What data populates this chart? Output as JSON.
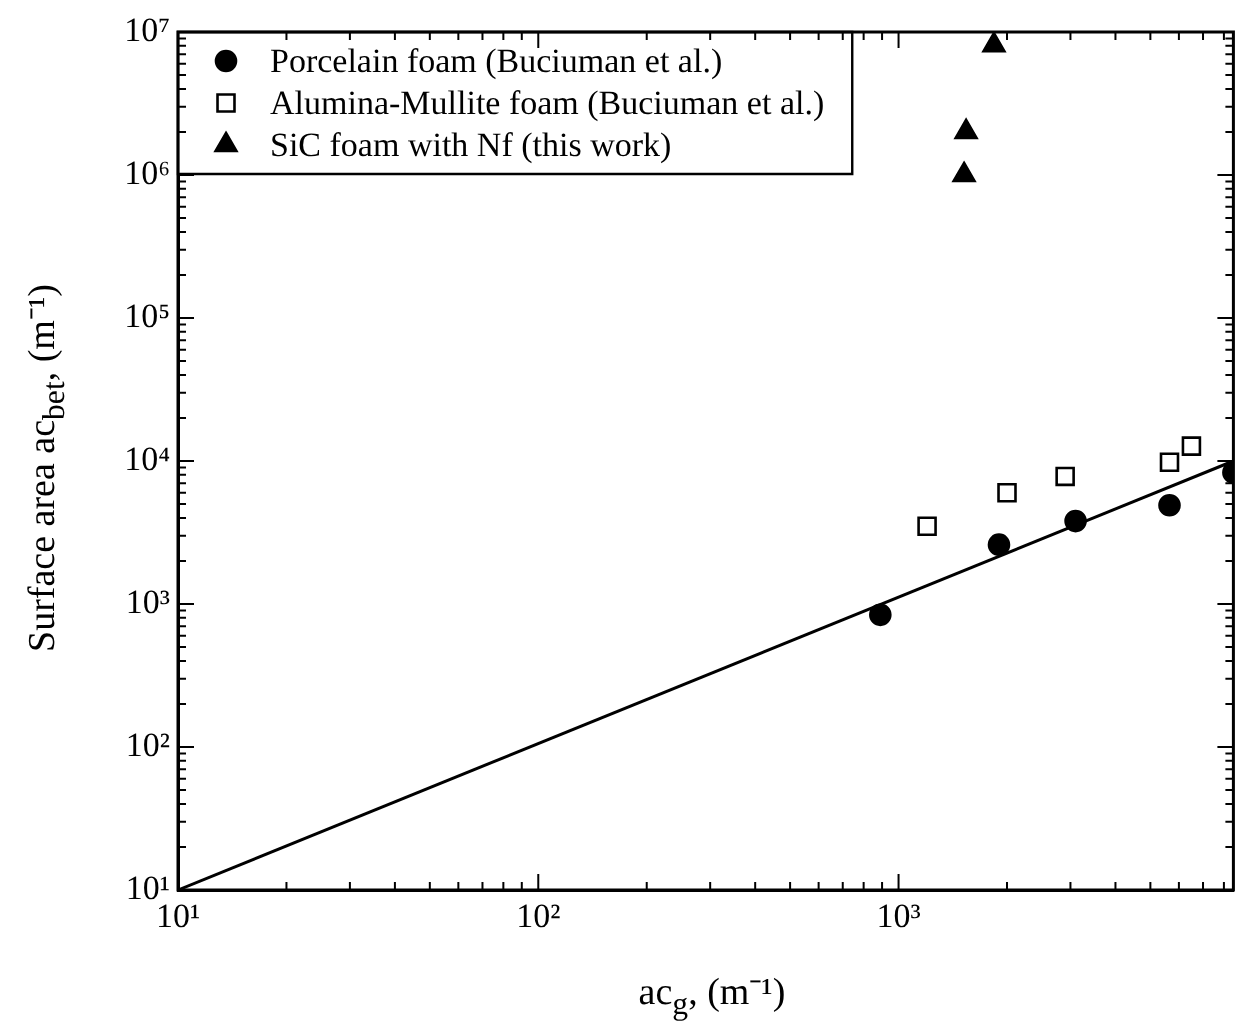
{
  "chart_data": {
    "type": "scatter",
    "xlabel": "ac$_{g}$, (m⁻¹)",
    "ylabel": "Surface area ac$_{bet}$, (m⁻¹)",
    "log": "xy",
    "xlim": [
      10,
      8500
    ],
    "ylim": [
      10,
      10000000
    ],
    "xticks": [
      {
        "value": 10,
        "label": "10¹"
      },
      {
        "value": 100,
        "label": "10²"
      },
      {
        "value": 1000,
        "label": "10³"
      }
    ],
    "yticks": [
      {
        "value": 10,
        "label": "10¹"
      },
      {
        "value": 100,
        "label": "10²"
      },
      {
        "value": 1000,
        "label": "10³"
      },
      {
        "value": 10000,
        "label": "10⁴"
      },
      {
        "value": 100000,
        "label": "10⁵"
      },
      {
        "value": 1000000,
        "label": "10⁶"
      },
      {
        "value": 10000000,
        "label": "10⁷"
      }
    ],
    "grid": false,
    "legend": "top left",
    "series": [
      {
        "name": "Porcelain foam (Buciuman et al.)",
        "color": "#000000",
        "marker": "circle",
        "x": [
          890,
          1900,
          3100,
          5650,
          8500
        ],
        "values": [
          840,
          2600,
          3800,
          4900,
          8300
        ]
      },
      {
        "name": "Alumina-Mullite foam (Buciuman et al.)",
        "color": "#000000",
        "marker": "square",
        "x": [
          1200,
          2000,
          2900,
          5650,
          6500
        ],
        "values": [
          3500,
          6000,
          7800,
          9800,
          12700
        ]
      },
      {
        "name": "SiC foam with Nf (this work)",
        "color": "#000000",
        "marker": "triangle",
        "x": [
          1520,
          1540,
          1840
        ],
        "values": [
          1000000,
          2000000,
          8100000
        ]
      },
      {
        "type": "line",
        "color": "#000000",
        "marker": "none",
        "x": [
          10,
          8500
        ],
        "values": [
          10,
          10000
        ]
      }
    ]
  }
}
